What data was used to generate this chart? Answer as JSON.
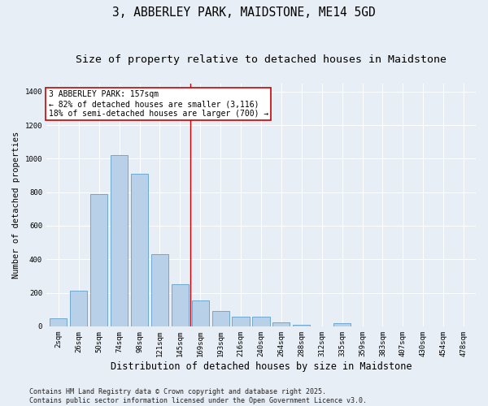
{
  "title": "3, ABBERLEY PARK, MAIDSTONE, ME14 5GD",
  "subtitle": "Size of property relative to detached houses in Maidstone",
  "xlabel": "Distribution of detached houses by size in Maidstone",
  "ylabel": "Number of detached properties",
  "categories": [
    "2sqm",
    "26sqm",
    "50sqm",
    "74sqm",
    "98sqm",
    "121sqm",
    "145sqm",
    "169sqm",
    "193sqm",
    "216sqm",
    "240sqm",
    "264sqm",
    "288sqm",
    "312sqm",
    "335sqm",
    "359sqm",
    "383sqm",
    "407sqm",
    "430sqm",
    "454sqm",
    "478sqm"
  ],
  "values": [
    50,
    210,
    790,
    1020,
    910,
    430,
    250,
    155,
    90,
    55,
    55,
    25,
    10,
    0,
    20,
    0,
    0,
    0,
    0,
    0,
    0
  ],
  "bar_color": "#b8d0e8",
  "bar_edge_color": "#6fa8d0",
  "vline_color": "#cc0000",
  "annotation_text": "3 ABBERLEY PARK: 157sqm\n← 82% of detached houses are smaller (3,116)\n18% of semi-detached houses are larger (700) →",
  "annotation_box_facecolor": "#ffffff",
  "annotation_box_edgecolor": "#cc0000",
  "ylim": [
    0,
    1450
  ],
  "yticks": [
    0,
    200,
    400,
    600,
    800,
    1000,
    1200,
    1400
  ],
  "bg_color": "#e8eef5",
  "footer": "Contains HM Land Registry data © Crown copyright and database right 2025.\nContains public sector information licensed under the Open Government Licence v3.0.",
  "title_fontsize": 10.5,
  "subtitle_fontsize": 9.5,
  "xlabel_fontsize": 8.5,
  "ylabel_fontsize": 7.5,
  "tick_fontsize": 6.5,
  "annotation_fontsize": 7.0,
  "footer_fontsize": 6.0,
  "vline_pos": 6.5
}
